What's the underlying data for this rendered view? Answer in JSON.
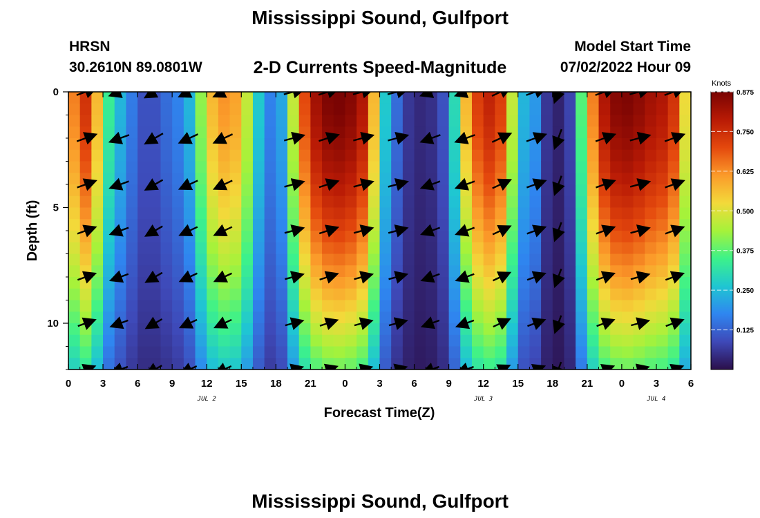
{
  "header": {
    "title": "Mississippi Sound, Gulfport",
    "station": "HRSN",
    "coords": "30.2610N  89.0801W",
    "subtitle": "2-D Currents Speed-Magnitude",
    "model_label": "Model Start Time",
    "model_time": "07/02/2022 Hour 09",
    "footer_title": "Mississippi Sound, Gulfport"
  },
  "chart_data": {
    "type": "heatmap",
    "title": "2-D Currents Speed-Magnitude",
    "xlabel": "Forecast Time(Z)",
    "ylabel": "Depth (ft)",
    "x_tick_labels": [
      "0",
      "3",
      "6",
      "9",
      "12",
      "15",
      "18",
      "21",
      "0",
      "3",
      "6",
      "9",
      "12",
      "15",
      "18",
      "21",
      "0",
      "3",
      "6"
    ],
    "date_labels": [
      {
        "label": "JUL 2",
        "at_hour": 12
      },
      {
        "label": "JUL 3",
        "at_hour": 36
      },
      {
        "label": "JUL 4",
        "at_hour": 51
      }
    ],
    "x_range_hours": [
      0,
      54
    ],
    "y_range_ft": [
      0,
      12
    ],
    "y_ticks": [
      0,
      5,
      10
    ],
    "y_tick_labels": [
      "0",
      "5",
      "10"
    ],
    "colorbar": {
      "unit": "Knots",
      "min": 0.0,
      "max": 0.875,
      "tick_values": [
        0.125,
        0.25,
        0.375,
        0.5,
        0.625,
        0.75,
        0.875
      ],
      "tick_labels": [
        "0.125",
        "0.250",
        "0.375",
        "0.500",
        "0.625",
        "0.750",
        "0.875"
      ],
      "colors": [
        "#2b0f4a",
        "#3e49b8",
        "#2f86f0",
        "#1fc6d2",
        "#3df28a",
        "#a6f23a",
        "#f3d93a",
        "#fb9a2a",
        "#e4480d",
        "#b81a05",
        "#7a0403"
      ]
    },
    "speed_profile": {
      "hours": [
        0,
        1,
        2,
        3,
        4,
        5,
        6,
        7,
        8,
        9,
        10,
        11,
        12,
        13,
        14,
        15,
        16,
        17,
        18,
        19,
        20,
        21,
        22,
        23,
        24,
        25,
        26,
        27,
        28,
        29,
        30,
        31,
        32,
        33,
        34,
        35,
        36,
        37,
        38,
        39,
        40,
        41,
        42,
        43,
        44,
        45,
        46,
        47,
        48,
        49,
        50,
        51,
        52,
        53,
        54
      ],
      "surface_knots": [
        0.62,
        0.72,
        0.55,
        0.32,
        0.22,
        0.14,
        0.1,
        0.1,
        0.12,
        0.15,
        0.22,
        0.4,
        0.55,
        0.6,
        0.58,
        0.45,
        0.25,
        0.15,
        0.2,
        0.45,
        0.68,
        0.8,
        0.85,
        0.86,
        0.84,
        0.78,
        0.55,
        0.25,
        0.12,
        0.06,
        0.04,
        0.05,
        0.1,
        0.28,
        0.55,
        0.7,
        0.75,
        0.7,
        0.45,
        0.22,
        0.18,
        0.06,
        0.03,
        0.08,
        0.35,
        0.62,
        0.78,
        0.84,
        0.85,
        0.83,
        0.8,
        0.78,
        0.72,
        0.5,
        0.25
      ],
      "bottom_factor": 0.45
    },
    "vector_rows_ft": [
      0,
      2,
      4,
      6,
      8,
      10,
      12
    ],
    "vector_columns_hours": [
      1.5,
      4.5,
      7.5,
      10.5,
      13.5,
      19.5,
      22.5,
      25.5,
      28.5,
      31.5,
      34.5,
      37.5,
      40.5,
      42.5,
      46.5,
      49.5,
      52.5
    ],
    "vector_angles_deg": {
      "1.5": 20,
      "4.5": 200,
      "7.5": 210,
      "10.5": 205,
      "13.5": 205,
      "19.5": 15,
      "22.5": 18,
      "25.5": 15,
      "28.5": 15,
      "31.5": 200,
      "34.5": 200,
      "37.5": 25,
      "40.5": 20,
      "42.5": 250,
      "46.5": 20,
      "49.5": 15,
      "52.5": 20
    }
  }
}
